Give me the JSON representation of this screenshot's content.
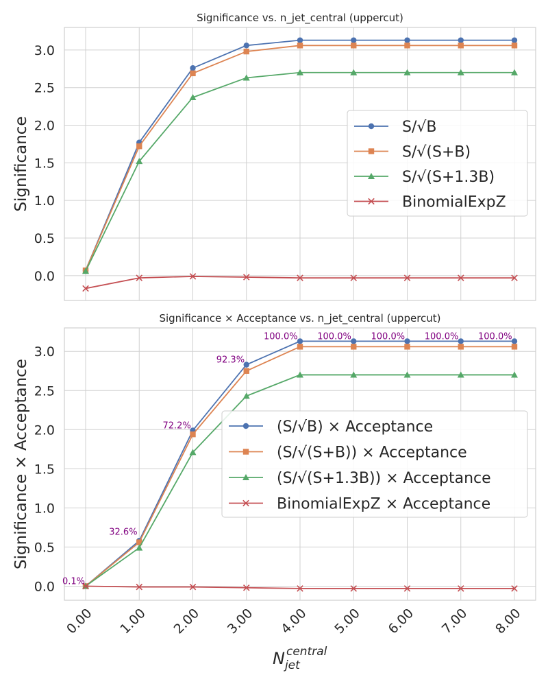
{
  "chart_data": [
    {
      "type": "line",
      "title": "Significance vs. n_jet_central (uppercut)",
      "xlabel": "",
      "ylabel": "Significance",
      "x": [
        0,
        1,
        2,
        3,
        4,
        5,
        6,
        7,
        8
      ],
      "xticklabels": [
        "0.00",
        "1.00",
        "2.00",
        "3.00",
        "4.00",
        "5.00",
        "6.00",
        "7.00",
        "8.00"
      ],
      "ylim": [
        -0.33,
        3.3
      ],
      "yticks": [
        "0.0",
        "0.5",
        "1.0",
        "1.5",
        "2.0",
        "2.5",
        "3.0"
      ],
      "grid": true,
      "legend_position": "center-right",
      "series": [
        {
          "name": "S/√B",
          "color": "#4c72b0",
          "marker": "circle",
          "values": [
            0.07,
            1.77,
            2.76,
            3.06,
            3.13,
            3.13,
            3.13,
            3.13,
            3.13
          ]
        },
        {
          "name": "S/√(S+B)",
          "color": "#dd8452",
          "marker": "square",
          "values": [
            0.07,
            1.72,
            2.69,
            2.98,
            3.06,
            3.06,
            3.06,
            3.06,
            3.06
          ]
        },
        {
          "name": "S/√(S+1.3B)",
          "color": "#55a868",
          "marker": "triangle",
          "values": [
            0.06,
            1.52,
            2.37,
            2.63,
            2.7,
            2.7,
            2.7,
            2.7,
            2.7
          ]
        },
        {
          "name": "BinomialExpZ",
          "color": "#c44e52",
          "marker": "x",
          "values": [
            -0.17,
            -0.03,
            -0.01,
            -0.02,
            -0.03,
            -0.03,
            -0.03,
            -0.03,
            -0.03
          ]
        }
      ]
    },
    {
      "type": "line",
      "title": "Significance × Acceptance vs. n_jet_central (uppercut)",
      "xlabel": "N_jet^central",
      "xlabel_main": "N",
      "xlabel_sub": "jet",
      "xlabel_sup": "central",
      "ylabel": "Significance × Acceptance",
      "x": [
        0,
        1,
        2,
        3,
        4,
        5,
        6,
        7,
        8
      ],
      "xticklabels": [
        "0.00",
        "1.00",
        "2.00",
        "3.00",
        "4.00",
        "5.00",
        "6.00",
        "7.00",
        "8.00"
      ],
      "ylim": [
        -0.18,
        3.3
      ],
      "yticks": [
        "0.0",
        "0.5",
        "1.0",
        "1.5",
        "2.0",
        "2.5",
        "3.0"
      ],
      "grid": true,
      "legend_position": "center-right",
      "annotations": [
        "0.1%",
        "32.6%",
        "72.2%",
        "92.3%",
        "100.0%",
        "100.0%",
        "100.0%",
        "100.0%",
        "100.0%"
      ],
      "annotation_color": "#800080",
      "series": [
        {
          "name": "(S/√B) × Acceptance",
          "color": "#4c72b0",
          "marker": "circle",
          "values": [
            0.0,
            0.58,
            1.99,
            2.83,
            3.13,
            3.13,
            3.13,
            3.13,
            3.13
          ]
        },
        {
          "name": "(S/√(S+B)) × Acceptance",
          "color": "#dd8452",
          "marker": "square",
          "values": [
            0.0,
            0.56,
            1.94,
            2.75,
            3.06,
            3.06,
            3.06,
            3.06,
            3.06
          ]
        },
        {
          "name": "(S/√(S+1.3B)) × Acceptance",
          "color": "#55a868",
          "marker": "triangle",
          "values": [
            0.0,
            0.49,
            1.71,
            2.43,
            2.7,
            2.7,
            2.7,
            2.7,
            2.7
          ]
        },
        {
          "name": "BinomialExpZ × Acceptance",
          "color": "#c44e52",
          "marker": "x",
          "values": [
            0.0,
            -0.01,
            -0.01,
            -0.02,
            -0.03,
            -0.03,
            -0.03,
            -0.03,
            -0.03
          ]
        }
      ]
    }
  ]
}
